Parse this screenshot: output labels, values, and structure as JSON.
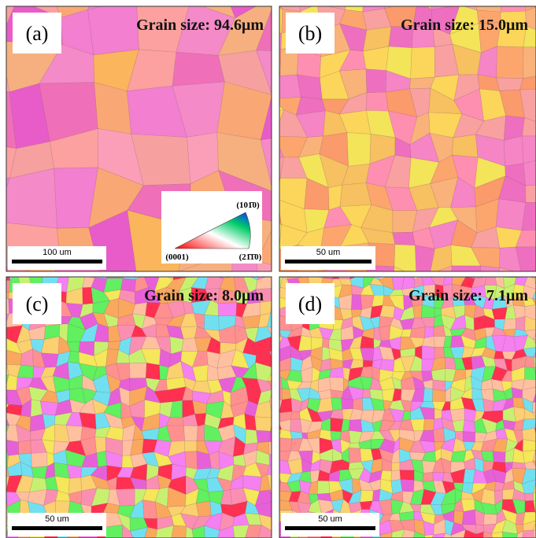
{
  "panels": [
    {
      "label": "(a)",
      "grain_size": "Grain size: 94.6μm",
      "scale_bar": "100 um"
    },
    {
      "label": "(b)",
      "grain_size": "Grain size: 15.0μm",
      "scale_bar": "50 um"
    },
    {
      "label": "(c)",
      "grain_size": "Grain size: 8.0μm",
      "scale_bar": "50 um"
    },
    {
      "label": "(d)",
      "grain_size": "Grain size: 7.1μm",
      "scale_bar": "50 um"
    }
  ],
  "legend": {
    "top": "(101̄0)",
    "left": "(0001)",
    "right": "(21̄1̄0)"
  }
}
